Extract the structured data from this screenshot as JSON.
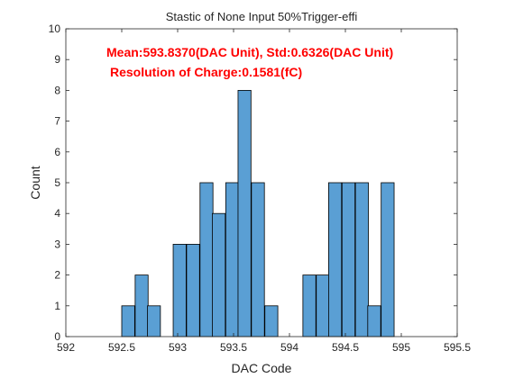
{
  "chart_data": {
    "type": "bar",
    "title": "Stastic of None Input 50%Trigger-effi",
    "xlabel": "DAC Code",
    "ylabel": "Count",
    "xlim": [
      592,
      595.5
    ],
    "ylim": [
      0,
      10
    ],
    "xticks": [
      "592",
      "592.5",
      "593",
      "593.5",
      "594",
      "594.5",
      "595",
      "595.5"
    ],
    "yticks": [
      "0",
      "1",
      "2",
      "3",
      "4",
      "5",
      "6",
      "7",
      "8",
      "9",
      "10"
    ],
    "bin_width": 0.1158,
    "bins": [
      {
        "x": 592.5,
        "count": 1
      },
      {
        "x": 592.62,
        "count": 2
      },
      {
        "x": 592.73,
        "count": 1
      },
      {
        "x": 592.85,
        "count": 0
      },
      {
        "x": 592.96,
        "count": 3
      },
      {
        "x": 593.08,
        "count": 3
      },
      {
        "x": 593.2,
        "count": 5
      },
      {
        "x": 593.31,
        "count": 4
      },
      {
        "x": 593.43,
        "count": 5
      },
      {
        "x": 593.54,
        "count": 8
      },
      {
        "x": 593.66,
        "count": 5
      },
      {
        "x": 593.78,
        "count": 1
      },
      {
        "x": 593.89,
        "count": 0
      },
      {
        "x": 594.01,
        "count": 0
      },
      {
        "x": 594.12,
        "count": 2
      },
      {
        "x": 594.24,
        "count": 2
      },
      {
        "x": 594.35,
        "count": 5
      },
      {
        "x": 594.47,
        "count": 5
      },
      {
        "x": 594.59,
        "count": 5
      },
      {
        "x": 594.7,
        "count": 1
      },
      {
        "x": 594.82,
        "count": 5
      }
    ],
    "bar_color": "#5a9fd4",
    "grid": false,
    "annotations": [
      "Mean:593.8370(DAC Unit), Std:0.6326(DAC Unit)",
      "Resolution of Charge:0.1581(fC)"
    ],
    "annotation_color": "#ff0000"
  }
}
